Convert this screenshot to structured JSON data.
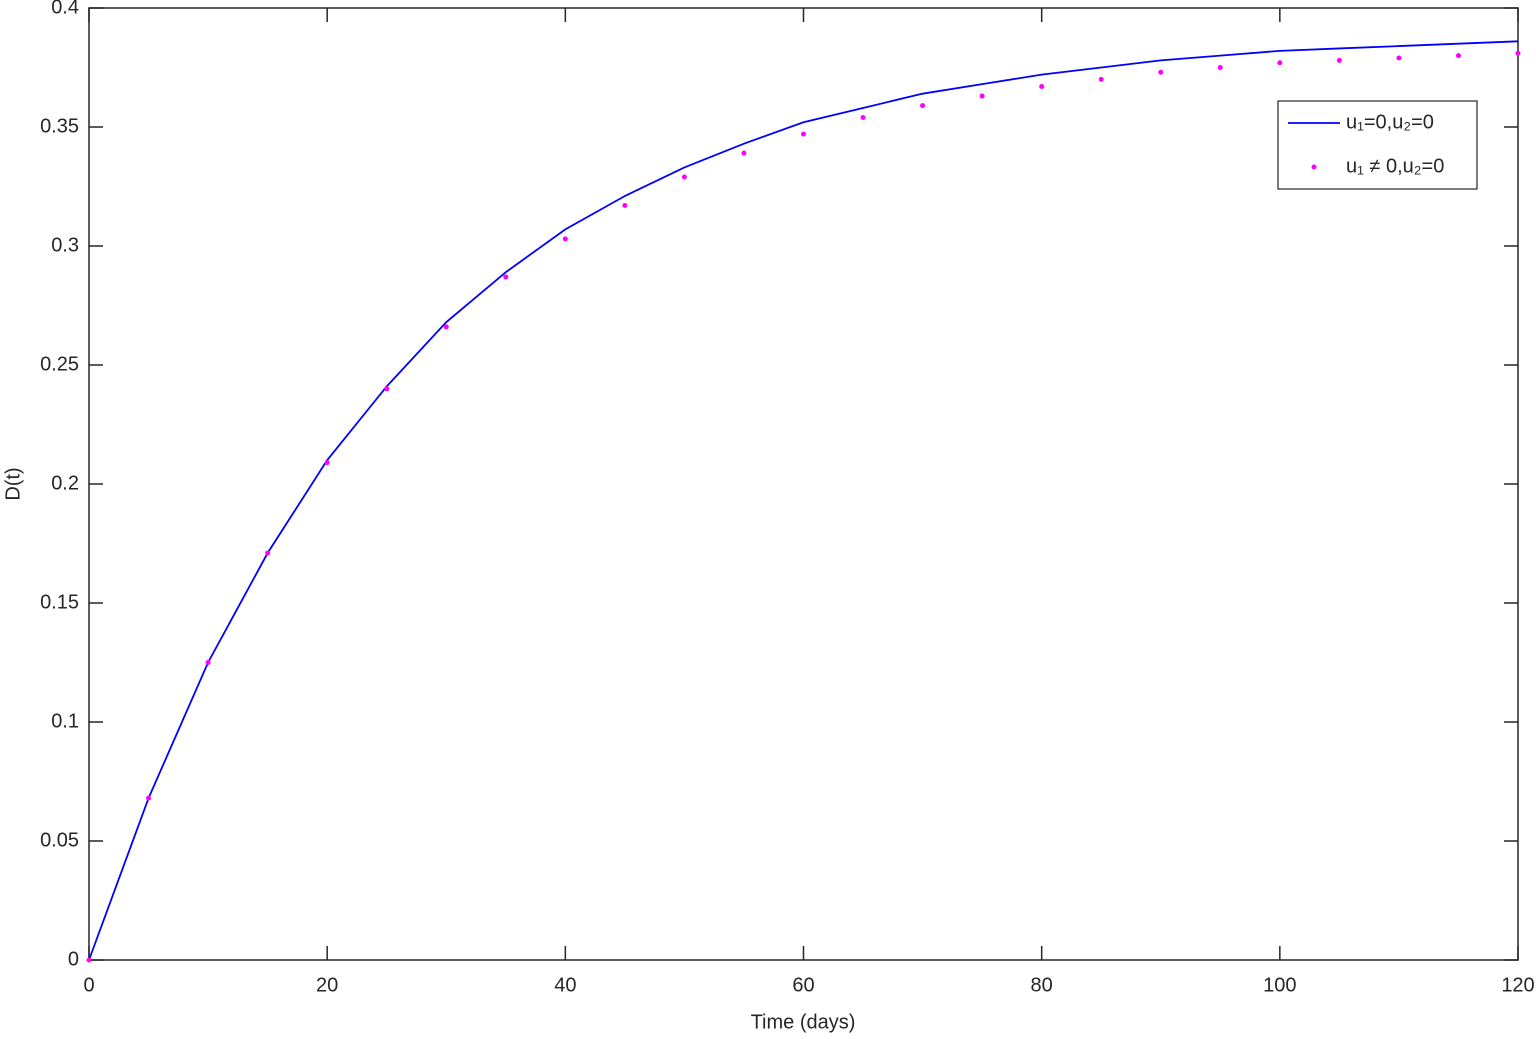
{
  "chart_data": {
    "type": "line",
    "xlabel": "Time (days)",
    "ylabel": "D(t)",
    "x": [
      0,
      5,
      10,
      15,
      20,
      25,
      30,
      35,
      40,
      45,
      50,
      55,
      60,
      65,
      70,
      75,
      80,
      85,
      90,
      95,
      100,
      105,
      110,
      115,
      120
    ],
    "series": [
      {
        "name": "u₁=0,u₂=0",
        "color": "#0000ff",
        "style": "solid",
        "values": [
          0,
          0.068,
          0.125,
          0.171,
          0.21,
          0.241,
          0.268,
          0.289,
          0.307,
          0.321,
          0.333,
          0.343,
          0.352,
          0.358,
          0.364,
          0.368,
          0.372,
          0.375,
          0.378,
          0.38,
          0.382,
          0.383,
          0.384,
          0.385,
          0.386
        ]
      },
      {
        "name": "u₁ ≠ 0,u₂=0",
        "color": "#ff00ff",
        "style": "dotted",
        "values": [
          0,
          0.068,
          0.125,
          0.171,
          0.209,
          0.24,
          0.266,
          0.287,
          0.303,
          0.317,
          0.329,
          0.339,
          0.347,
          0.354,
          0.359,
          0.363,
          0.367,
          0.37,
          0.373,
          0.375,
          0.377,
          0.378,
          0.379,
          0.38,
          0.381
        ]
      }
    ],
    "xlim": [
      0,
      120
    ],
    "xticks": [
      0,
      20,
      40,
      60,
      80,
      100,
      120
    ],
    "ylim": [
      0,
      0.4
    ],
    "yticks": [
      0,
      0.05,
      0.1,
      0.15,
      0.2,
      0.25,
      0.3,
      0.35,
      0.4
    ],
    "legend": "northeast",
    "grid": false
  }
}
